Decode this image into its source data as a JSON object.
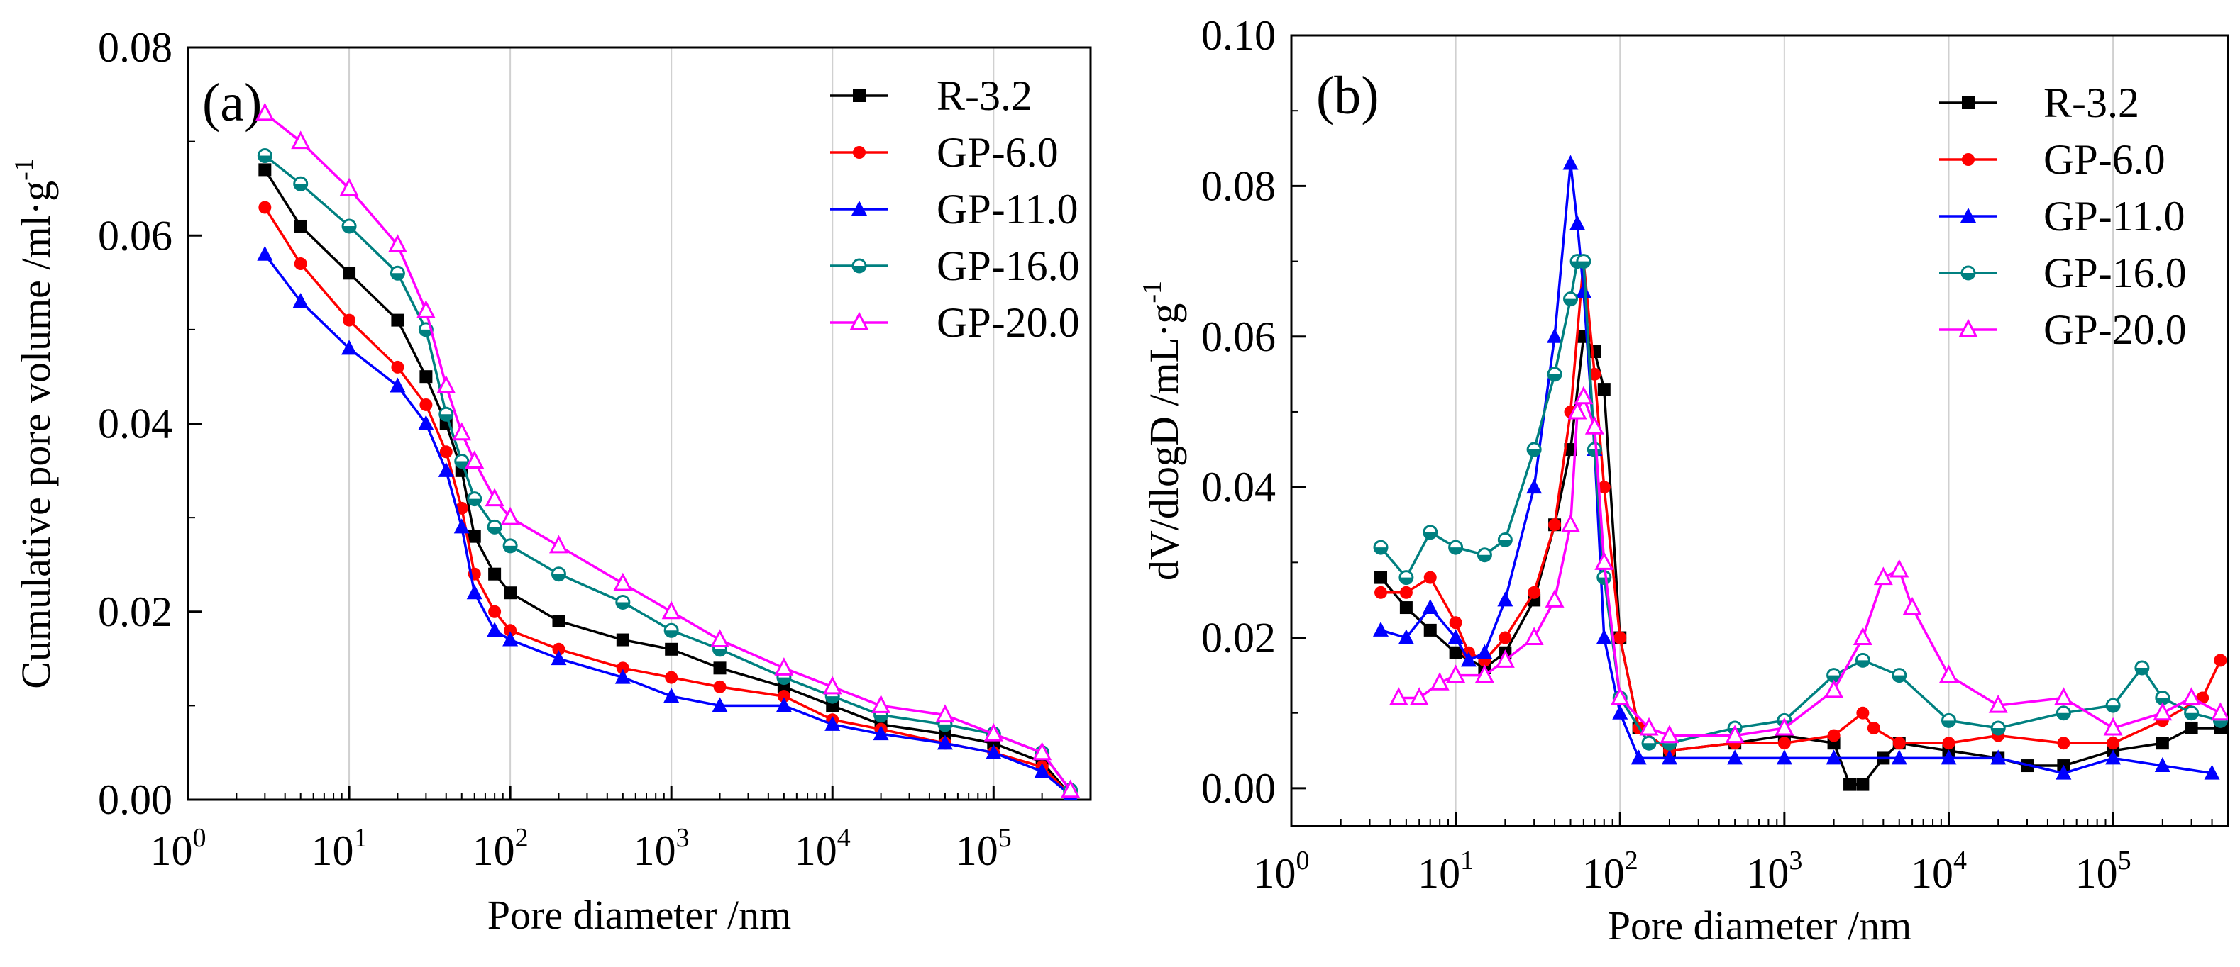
{
  "chart_data": [
    {
      "type": "line",
      "panel_label": "(a)",
      "xscale": "log",
      "xlabel": "Pore diameter /nm",
      "ylabel": "Cumulative pore volume /ml·g",
      "ylabel_sup": "-1",
      "xlim": [
        1,
        400000
      ],
      "ylim": [
        0,
        0.08
      ],
      "x_ticks": [
        {
          "base": "10",
          "exp": "0",
          "value": 1
        },
        {
          "base": "10",
          "exp": "1",
          "value": 10
        },
        {
          "base": "10",
          "exp": "2",
          "value": 100
        },
        {
          "base": "10",
          "exp": "3",
          "value": 1000
        },
        {
          "base": "10",
          "exp": "4",
          "value": 10000
        },
        {
          "base": "10",
          "exp": "5",
          "value": 100000
        }
      ],
      "y_ticks": [
        {
          "label": "0.00",
          "value": 0
        },
        {
          "label": "0.02",
          "value": 0.02
        },
        {
          "label": "0.04",
          "value": 0.04
        },
        {
          "label": "0.06",
          "value": 0.06
        },
        {
          "label": "0.08",
          "value": 0.08
        }
      ],
      "grid": "vertical",
      "legend_position": "top-right",
      "series": [
        {
          "name": "R-3.2",
          "color": "#000000",
          "marker": "square",
          "x": [
            3,
            5,
            10,
            20,
            30,
            40,
            50,
            60,
            80,
            100,
            200,
            500,
            1000,
            2000,
            5000,
            10000,
            20000,
            50000,
            100000,
            200000,
            300000
          ],
          "y": [
            0.067,
            0.061,
            0.056,
            0.051,
            0.045,
            0.04,
            0.035,
            0.028,
            0.024,
            0.022,
            0.019,
            0.017,
            0.016,
            0.014,
            0.012,
            0.01,
            0.008,
            0.007,
            0.006,
            0.004,
            0.0005
          ]
        },
        {
          "name": "GP-6.0",
          "color": "#ff0000",
          "marker": "circle",
          "x": [
            3,
            5,
            10,
            20,
            30,
            40,
            50,
            60,
            80,
            100,
            200,
            500,
            1000,
            2000,
            5000,
            10000,
            20000,
            50000,
            100000,
            200000,
            300000
          ],
          "y": [
            0.063,
            0.057,
            0.051,
            0.046,
            0.042,
            0.037,
            0.031,
            0.024,
            0.02,
            0.018,
            0.016,
            0.014,
            0.013,
            0.012,
            0.011,
            0.0085,
            0.0075,
            0.006,
            0.005,
            0.0035,
            0.0005
          ]
        },
        {
          "name": "GP-11.0",
          "color": "#0000ff",
          "marker": "triangle",
          "x": [
            3,
            5,
            10,
            20,
            30,
            40,
            50,
            60,
            80,
            100,
            200,
            500,
            1000,
            2000,
            5000,
            10000,
            20000,
            50000,
            100000,
            200000,
            300000
          ],
          "y": [
            0.058,
            0.053,
            0.048,
            0.044,
            0.04,
            0.035,
            0.029,
            0.022,
            0.018,
            0.017,
            0.015,
            0.013,
            0.011,
            0.01,
            0.01,
            0.008,
            0.007,
            0.006,
            0.005,
            0.003,
            0.0005
          ]
        },
        {
          "name": "GP-16.0",
          "color": "#008080",
          "marker": "half-circle",
          "x": [
            3,
            5,
            10,
            20,
            30,
            40,
            50,
            60,
            80,
            100,
            200,
            500,
            1000,
            2000,
            5000,
            10000,
            20000,
            50000,
            100000,
            200000,
            300000
          ],
          "y": [
            0.0685,
            0.0655,
            0.061,
            0.056,
            0.05,
            0.041,
            0.036,
            0.032,
            0.029,
            0.027,
            0.024,
            0.021,
            0.018,
            0.016,
            0.013,
            0.011,
            0.009,
            0.008,
            0.007,
            0.005,
            0.001
          ]
        },
        {
          "name": "GP-20.0",
          "color": "#ff00ff",
          "marker": "open-triangle",
          "x": [
            3,
            5,
            10,
            20,
            30,
            40,
            50,
            60,
            80,
            100,
            200,
            500,
            1000,
            2000,
            5000,
            10000,
            20000,
            50000,
            100000,
            200000,
            300000
          ],
          "y": [
            0.073,
            0.07,
            0.065,
            0.059,
            0.052,
            0.044,
            0.039,
            0.036,
            0.032,
            0.03,
            0.027,
            0.023,
            0.02,
            0.017,
            0.014,
            0.012,
            0.01,
            0.009,
            0.007,
            0.005,
            0.001
          ]
        }
      ]
    },
    {
      "type": "line",
      "panel_label": "(b)",
      "xscale": "log",
      "xlabel": "Pore diameter /nm",
      "ylabel": "dV/dlogD /mL·g",
      "ylabel_sup": "-1",
      "xlim": [
        1,
        500000
      ],
      "ylim": [
        -0.005,
        0.1
      ],
      "x_ticks": [
        {
          "base": "10",
          "exp": "0",
          "value": 1
        },
        {
          "base": "10",
          "exp": "1",
          "value": 10
        },
        {
          "base": "10",
          "exp": "2",
          "value": 100
        },
        {
          "base": "10",
          "exp": "3",
          "value": 1000
        },
        {
          "base": "10",
          "exp": "4",
          "value": 10000
        },
        {
          "base": "10",
          "exp": "5",
          "value": 100000
        }
      ],
      "y_ticks": [
        {
          "label": "0.00",
          "value": 0
        },
        {
          "label": "0.02",
          "value": 0.02
        },
        {
          "label": "0.04",
          "value": 0.04
        },
        {
          "label": "0.06",
          "value": 0.06
        },
        {
          "label": "0.08",
          "value": 0.08
        },
        {
          "label": "0.10",
          "value": 0.1
        }
      ],
      "grid": "vertical",
      "legend_position": "top-right",
      "series": [
        {
          "name": "R-3.2",
          "color": "#000000",
          "marker": "square",
          "x": [
            3.5,
            5,
            7,
            10,
            15,
            20,
            30,
            40,
            50,
            60,
            70,
            80,
            100,
            130,
            200,
            500,
            1000,
            2000,
            2500,
            3000,
            4000,
            5000,
            10000,
            20000,
            30000,
            50000,
            100000,
            200000,
            300000,
            450000
          ],
          "y": [
            0.028,
            0.024,
            0.021,
            0.018,
            0.016,
            0.018,
            0.025,
            0.035,
            0.045,
            0.06,
            0.058,
            0.053,
            0.02,
            0.008,
            0.005,
            0.006,
            0.007,
            0.006,
            0.0005,
            0.0005,
            0.004,
            0.006,
            0.005,
            0.004,
            0.003,
            0.003,
            0.005,
            0.006,
            0.008,
            0.008
          ]
        },
        {
          "name": "GP-6.0",
          "color": "#ff0000",
          "marker": "circle",
          "x": [
            3.5,
            5,
            7,
            10,
            12,
            15,
            20,
            30,
            40,
            50,
            60,
            70,
            80,
            100,
            130,
            200,
            500,
            1000,
            2000,
            3000,
            3500,
            5000,
            10000,
            20000,
            50000,
            100000,
            200000,
            350000,
            450000
          ],
          "y": [
            0.026,
            0.026,
            0.028,
            0.022,
            0.018,
            0.017,
            0.02,
            0.026,
            0.035,
            0.05,
            0.07,
            0.055,
            0.04,
            0.02,
            0.008,
            0.005,
            0.006,
            0.006,
            0.007,
            0.01,
            0.008,
            0.006,
            0.006,
            0.007,
            0.006,
            0.006,
            0.009,
            0.012,
            0.017
          ]
        },
        {
          "name": "GP-11.0",
          "color": "#0000ff",
          "marker": "triangle",
          "x": [
            3.5,
            5,
            7,
            10,
            12,
            15,
            20,
            30,
            40,
            50,
            55,
            60,
            70,
            80,
            100,
            130,
            200,
            500,
            1000,
            2000,
            5000,
            10000,
            20000,
            50000,
            100000,
            200000,
            400000
          ],
          "y": [
            0.021,
            0.02,
            0.024,
            0.02,
            0.017,
            0.018,
            0.025,
            0.04,
            0.06,
            0.083,
            0.075,
            0.066,
            0.045,
            0.02,
            0.01,
            0.004,
            0.004,
            0.004,
            0.004,
            0.004,
            0.004,
            0.004,
            0.004,
            0.002,
            0.004,
            0.003,
            0.002
          ]
        },
        {
          "name": "GP-16.0",
          "color": "#008080",
          "marker": "half-circle",
          "x": [
            3.5,
            5,
            7,
            10,
            15,
            20,
            30,
            40,
            50,
            55,
            60,
            70,
            80,
            100,
            150,
            200,
            500,
            1000,
            2000,
            3000,
            5000,
            10000,
            20000,
            50000,
            100000,
            150000,
            200000,
            300000,
            450000
          ],
          "y": [
            0.032,
            0.028,
            0.034,
            0.032,
            0.031,
            0.033,
            0.045,
            0.055,
            0.065,
            0.07,
            0.07,
            0.045,
            0.028,
            0.012,
            0.006,
            0.006,
            0.008,
            0.009,
            0.015,
            0.017,
            0.015,
            0.009,
            0.008,
            0.01,
            0.011,
            0.016,
            0.012,
            0.01,
            0.009
          ]
        },
        {
          "name": "GP-20.0",
          "color": "#ff00ff",
          "marker": "open-triangle",
          "x": [
            4.5,
            6,
            8,
            10,
            15,
            20,
            30,
            40,
            50,
            55,
            60,
            70,
            80,
            100,
            150,
            200,
            500,
            1000,
            2000,
            3000,
            4000,
            5000,
            6000,
            10000,
            20000,
            50000,
            100000,
            200000,
            300000,
            450000
          ],
          "y": [
            0.012,
            0.012,
            0.014,
            0.015,
            0.015,
            0.017,
            0.02,
            0.025,
            0.035,
            0.05,
            0.052,
            0.048,
            0.03,
            0.012,
            0.008,
            0.007,
            0.007,
            0.008,
            0.013,
            0.02,
            0.028,
            0.029,
            0.024,
            0.015,
            0.011,
            0.012,
            0.008,
            0.01,
            0.012,
            0.01
          ]
        }
      ]
    }
  ]
}
